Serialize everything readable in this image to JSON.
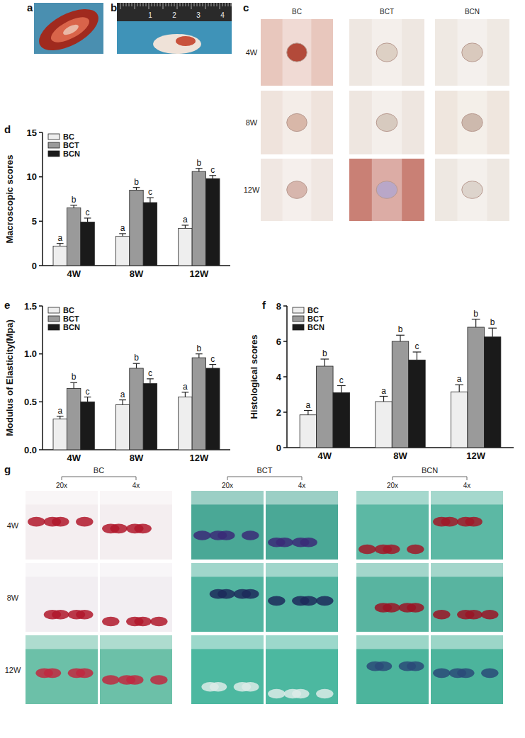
{
  "panel_labels": [
    "a",
    "b",
    "c",
    "d",
    "e",
    "f",
    "g"
  ],
  "photos": {
    "ruler": [
      "1",
      "2",
      "3",
      "4"
    ],
    "c": {
      "columns": [
        "BC",
        "BCT",
        "BCN"
      ],
      "rows": [
        "4W",
        "8W",
        "12W"
      ]
    },
    "g": {
      "groups": [
        "BC",
        "BCT",
        "BCN"
      ],
      "magnifications": [
        "20x",
        "4x"
      ],
      "rows": [
        "4W",
        "8W",
        "12W"
      ]
    }
  },
  "chart_data": [
    {
      "type": "bar",
      "y_label": "Macroscopic scores",
      "categories": [
        "4W",
        "8W",
        "12W"
      ],
      "ylim": [
        0,
        15
      ],
      "yticks": [
        0,
        5,
        10,
        15
      ],
      "legend": "top-left",
      "series": [
        {
          "name": "BC",
          "color": "#eeeeee",
          "values": [
            2.2,
            3.3,
            4.2
          ],
          "errors": [
            0.3,
            0.3,
            0.35
          ],
          "letters": [
            "a",
            "a",
            "a"
          ]
        },
        {
          "name": "BCT",
          "color": "#9a9a9a",
          "values": [
            6.5,
            8.5,
            10.6
          ],
          "errors": [
            0.3,
            0.3,
            0.35
          ],
          "letters": [
            "b",
            "b",
            "b"
          ]
        },
        {
          "name": "BCN",
          "color": "#1a1a1a",
          "values": [
            4.9,
            7.1,
            9.8
          ],
          "errors": [
            0.45,
            0.55,
            0.35
          ],
          "letters": [
            "c",
            "c",
            "c"
          ]
        }
      ]
    },
    {
      "type": "bar",
      "y_label": "Modulus of Elasticity(Mpa)",
      "categories": [
        "4W",
        "8W",
        "12W"
      ],
      "ylim": [
        0,
        1.5
      ],
      "yticks": [
        {
          "value": 0,
          "label": "0.0"
        },
        0.5,
        {
          "value": 1,
          "label": "1.0"
        },
        1.5
      ],
      "legend": "top-left",
      "series": [
        {
          "name": "BC",
          "color": "#eeeeee",
          "values": [
            0.32,
            0.47,
            0.55
          ],
          "errors": [
            0.03,
            0.05,
            0.05
          ],
          "letters": [
            "a",
            "a",
            "a"
          ]
        },
        {
          "name": "BCT",
          "color": "#9a9a9a",
          "values": [
            0.64,
            0.85,
            0.96
          ],
          "errors": [
            0.06,
            0.05,
            0.04
          ],
          "letters": [
            "b",
            "b",
            "b"
          ]
        },
        {
          "name": "BCN",
          "color": "#1a1a1a",
          "values": [
            0.5,
            0.69,
            0.85
          ],
          "errors": [
            0.05,
            0.05,
            0.04
          ],
          "letters": [
            "c",
            "c",
            "c"
          ]
        }
      ]
    },
    {
      "type": "bar",
      "y_label": "Histological scores",
      "categories": [
        "4W",
        "8W",
        "12W"
      ],
      "ylim": [
        0,
        8
      ],
      "yticks": [
        0,
        2,
        4,
        6,
        8
      ],
      "legend": "top-left",
      "series": [
        {
          "name": "BC",
          "color": "#eeeeee",
          "values": [
            1.85,
            2.6,
            3.15
          ],
          "errors": [
            0.25,
            0.3,
            0.4
          ],
          "letters": [
            "a",
            "a",
            "a"
          ]
        },
        {
          "name": "BCT",
          "color": "#9a9a9a",
          "values": [
            4.6,
            6.0,
            6.8
          ],
          "errors": [
            0.4,
            0.35,
            0.45
          ],
          "letters": [
            "b",
            "b",
            "b"
          ]
        },
        {
          "name": "BCN",
          "color": "#1a1a1a",
          "values": [
            3.1,
            4.95,
            6.25
          ],
          "errors": [
            0.4,
            0.45,
            0.5
          ],
          "letters": [
            "c",
            "c",
            "b"
          ]
        }
      ]
    }
  ]
}
